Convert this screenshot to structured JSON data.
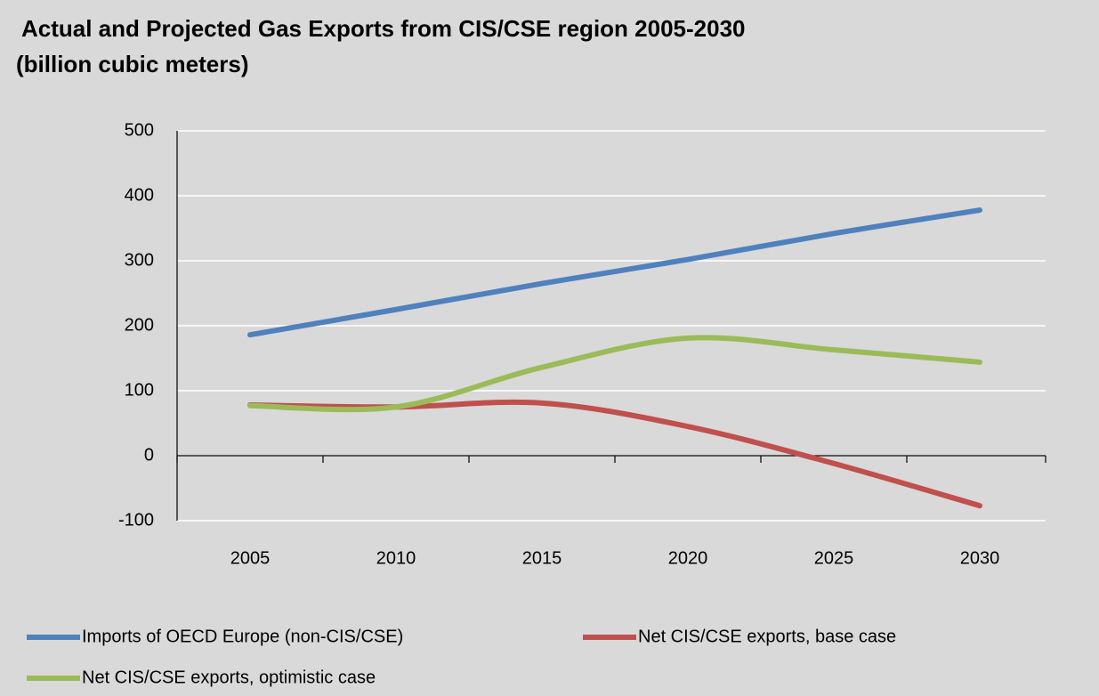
{
  "chart_data": {
    "type": "line",
    "title": "Actual and Projected Gas Exports from CIS/CSE region 2005-2030",
    "subtitle": "(billion cubic meters)",
    "categories": [
      "2005",
      "2010",
      "2015",
      "2020",
      "2025",
      "2030"
    ],
    "series": [
      {
        "name": "Imports of OECD Europe (non-CIS/CSE)",
        "color": "#4f81bd",
        "values": [
          186,
          225,
          265,
          302,
          342,
          378
        ]
      },
      {
        "name": "Net CIS/CSE exports, base case",
        "color": "#c0504d",
        "values": [
          78,
          75,
          81,
          45,
          -12,
          -77
        ]
      },
      {
        "name": "Net CIS/CSE exports, optimistic case",
        "color": "#9bbb59",
        "values": [
          77,
          75,
          136,
          181,
          163,
          144
        ]
      }
    ],
    "ylim": [
      -100,
      500
    ],
    "yticks": [
      -100,
      0,
      100,
      200,
      300,
      400,
      500
    ],
    "grid": true,
    "smooth": true,
    "legend": "bottom"
  }
}
